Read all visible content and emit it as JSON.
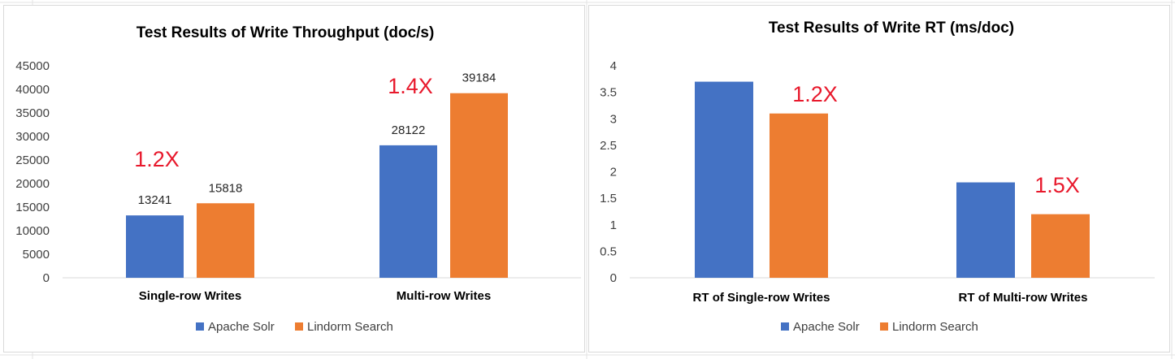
{
  "chart_data": [
    {
      "type": "bar",
      "title": "Test Results of Write Throughput (doc/s)",
      "xlabel": "",
      "ylabel": "",
      "categories": [
        "Single-row Writes",
        "Multi-row Writes"
      ],
      "series": [
        {
          "name": "Apache Solr",
          "values": [
            13241,
            28122
          ],
          "color": "#4472c4"
        },
        {
          "name": "Lindorm Search",
          "values": [
            15818,
            39184
          ],
          "color": "#ed7d31"
        }
      ],
      "data_labels": [
        "13241",
        "28122",
        "15818",
        "39184"
      ],
      "ylim": [
        0,
        45000
      ],
      "yticks": [
        "0",
        "5000",
        "10000",
        "15000",
        "20000",
        "25000",
        "30000",
        "35000",
        "40000",
        "45000"
      ],
      "annotations": [
        "1.2X",
        "1.4X"
      ],
      "grid": false,
      "legend": "bottom"
    },
    {
      "type": "bar",
      "title": "Test Results of Write RT (ms/doc)",
      "xlabel": "",
      "ylabel": "",
      "categories": [
        "RT of Single-row Writes",
        "RT of Multi-row Writes"
      ],
      "series": [
        {
          "name": "Apache Solr",
          "values": [
            3.7,
            1.8
          ],
          "color": "#4472c4"
        },
        {
          "name": "Lindorm Search",
          "values": [
            3.1,
            1.2
          ],
          "color": "#ed7d31"
        }
      ],
      "ylim": [
        0,
        4
      ],
      "yticks": [
        "0",
        "0.5",
        "1",
        "1.5",
        "2",
        "2.5",
        "3",
        "3.5",
        "4"
      ],
      "annotations": [
        "1.2X",
        "1.5X"
      ],
      "grid": false,
      "legend": "bottom"
    }
  ]
}
